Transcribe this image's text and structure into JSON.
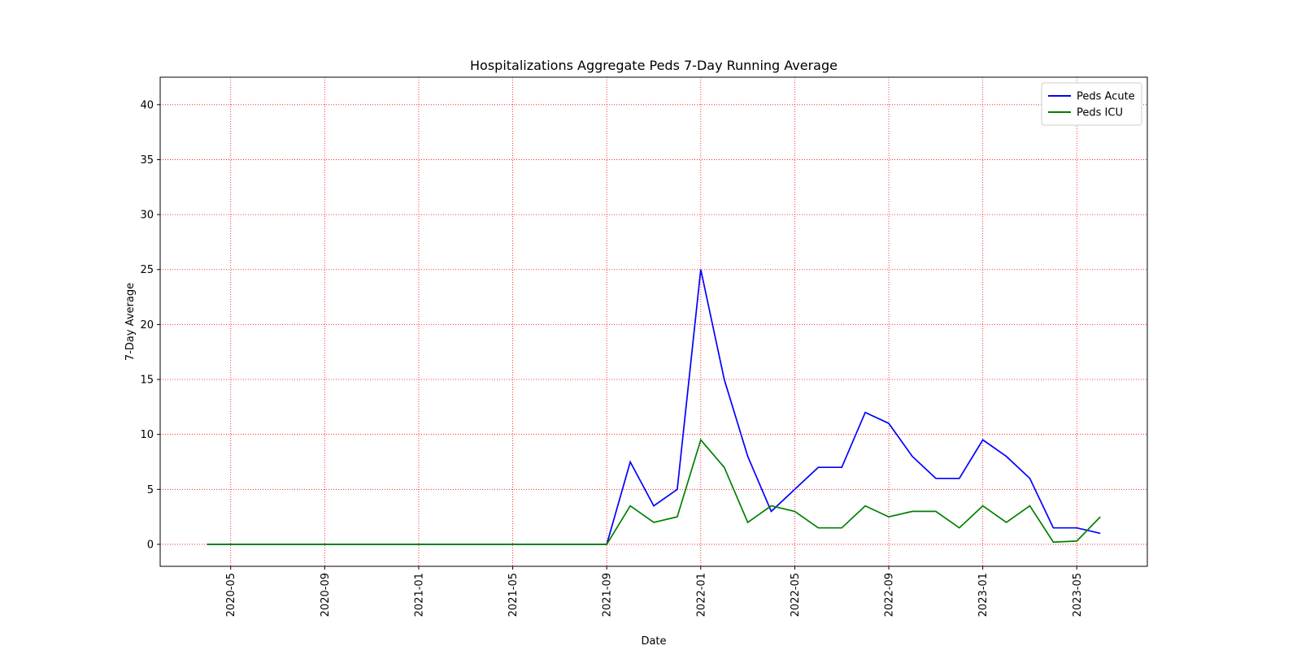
{
  "chart_data": {
    "type": "line",
    "title": "Hospitalizations Aggregate Peds 7-Day Running Average",
    "xlabel": "Date",
    "ylabel": "7-Day Average",
    "x": [
      "2020-04",
      "2020-05",
      "2020-06",
      "2020-07",
      "2020-08",
      "2020-09",
      "2020-10",
      "2020-11",
      "2020-12",
      "2021-01",
      "2021-02",
      "2021-03",
      "2021-04",
      "2021-05",
      "2021-06",
      "2021-07",
      "2021-08",
      "2021-09",
      "2021-10",
      "2021-11",
      "2021-12",
      "2022-01",
      "2022-02",
      "2022-03",
      "2022-04",
      "2022-05",
      "2022-06",
      "2022-07",
      "2022-08",
      "2022-09",
      "2022-10",
      "2022-11",
      "2022-12",
      "2023-01",
      "2023-02",
      "2023-03",
      "2023-04",
      "2023-05",
      "2023-06"
    ],
    "series": [
      {
        "name": "Peds Acute",
        "color": "#0000ff",
        "values": [
          0,
          0,
          0,
          0,
          0,
          0,
          0,
          0,
          0,
          0,
          0,
          0,
          0,
          0,
          0,
          0,
          0,
          0,
          7.5,
          3.5,
          5,
          25,
          15,
          8,
          3,
          5,
          7,
          7,
          12,
          11,
          8,
          6,
          6,
          9.5,
          8,
          6,
          1.5,
          1.5,
          1
        ]
      },
      {
        "name": "Peds ICU",
        "color": "#008000",
        "values": [
          0,
          0,
          0,
          0,
          0,
          0,
          0,
          0,
          0,
          0,
          0,
          0,
          0,
          0,
          0,
          0,
          0,
          0,
          3.5,
          2,
          2.5,
          9.5,
          7,
          2,
          3.5,
          3,
          1.5,
          1.5,
          3.5,
          2.5,
          3,
          3,
          1.5,
          3.5,
          2,
          3.5,
          0.2,
          0.3,
          2.5
        ]
      }
    ],
    "xlim": [
      "2020-02",
      "2023-08"
    ],
    "xticks": [
      "2020-05",
      "2020-09",
      "2021-01",
      "2021-05",
      "2021-09",
      "2022-01",
      "2022-05",
      "2022-09",
      "2023-01",
      "2023-05"
    ],
    "ylim": [
      -2,
      42.5
    ],
    "yticks": [
      0,
      5,
      10,
      15,
      20,
      25,
      30,
      35,
      40
    ],
    "grid": true,
    "grid_color": "#ff0000",
    "legend": "upper right"
  }
}
